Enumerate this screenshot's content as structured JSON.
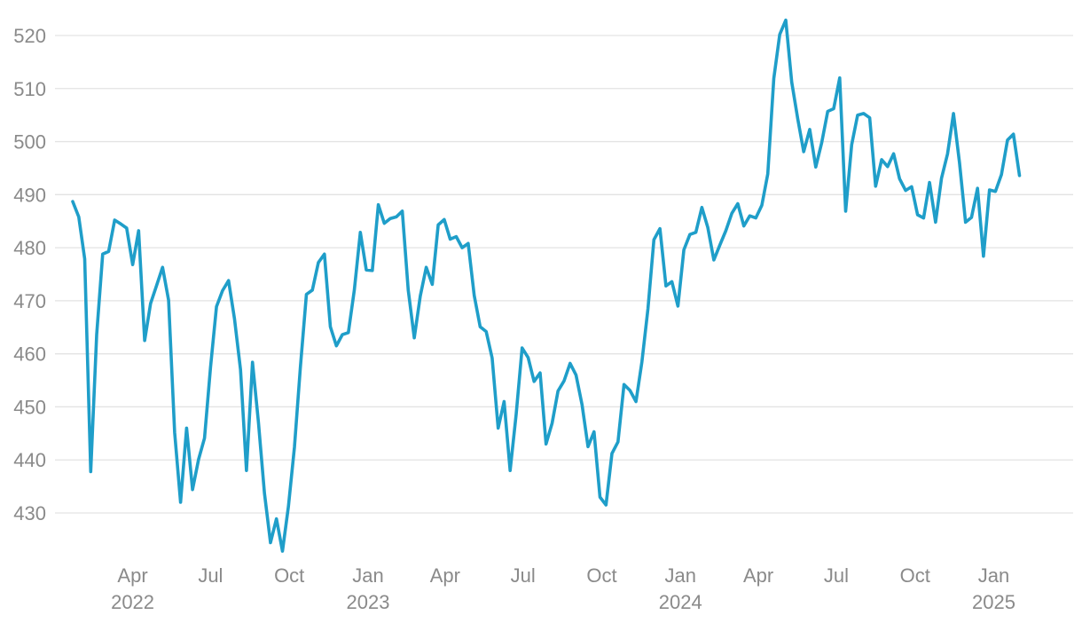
{
  "chart_data": {
    "type": "line",
    "title": "",
    "xlabel": "",
    "ylabel": "",
    "grid": true,
    "legend": "none",
    "color": "#1f9ec9",
    "ylim": [
      422,
      523
    ],
    "xlim": [
      "2022-01-21",
      "2025-03-14"
    ],
    "yticks": [
      430,
      440,
      450,
      460,
      470,
      480,
      490,
      500,
      510,
      520
    ],
    "xticks": [
      {
        "date": "2022-04-01",
        "label": "Apr",
        "sublabel": "2022"
      },
      {
        "date": "2022-07-01",
        "label": "Jul",
        "sublabel": ""
      },
      {
        "date": "2022-10-01",
        "label": "Oct",
        "sublabel": ""
      },
      {
        "date": "2023-01-01",
        "label": "Jan",
        "sublabel": "2023"
      },
      {
        "date": "2023-04-01",
        "label": "Apr",
        "sublabel": ""
      },
      {
        "date": "2023-07-01",
        "label": "Jul",
        "sublabel": ""
      },
      {
        "date": "2023-10-01",
        "label": "Oct",
        "sublabel": ""
      },
      {
        "date": "2024-01-01",
        "label": "Jan",
        "sublabel": "2024"
      },
      {
        "date": "2024-04-01",
        "label": "Apr",
        "sublabel": ""
      },
      {
        "date": "2024-07-01",
        "label": "Jul",
        "sublabel": ""
      },
      {
        "date": "2024-10-01",
        "label": "Oct",
        "sublabel": ""
      },
      {
        "date": "2025-01-01",
        "label": "Jan",
        "sublabel": "2025"
      }
    ],
    "series": [
      {
        "name": "",
        "points": [
          [
            "2022-01-21",
            488.7
          ],
          [
            "2022-01-28",
            485.8
          ],
          [
            "2022-02-04",
            477.9
          ],
          [
            "2022-02-11",
            437.8
          ],
          [
            "2022-02-18",
            463.6
          ],
          [
            "2022-02-25",
            478.8
          ],
          [
            "2022-03-04",
            479.3
          ],
          [
            "2022-03-11",
            485.2
          ],
          [
            "2022-03-18",
            484.5
          ],
          [
            "2022-03-25",
            483.7
          ],
          [
            "2022-04-01",
            476.8
          ],
          [
            "2022-04-08",
            483.2
          ],
          [
            "2022-04-15",
            462.5
          ],
          [
            "2022-04-22",
            469.5
          ],
          [
            "2022-04-29",
            472.9
          ],
          [
            "2022-05-06",
            476.3
          ],
          [
            "2022-05-13",
            470.1
          ],
          [
            "2022-05-20",
            445.2
          ],
          [
            "2022-05-27",
            432.0
          ],
          [
            "2022-06-03",
            446.0
          ],
          [
            "2022-06-10",
            434.4
          ],
          [
            "2022-06-17",
            440.1
          ],
          [
            "2022-06-24",
            444.1
          ],
          [
            "2022-07-01",
            457.5
          ],
          [
            "2022-07-08",
            468.9
          ],
          [
            "2022-07-15",
            471.9
          ],
          [
            "2022-07-22",
            473.8
          ],
          [
            "2022-07-29",
            466.6
          ],
          [
            "2022-08-05",
            457.0
          ],
          [
            "2022-08-12",
            438.0
          ],
          [
            "2022-08-19",
            458.4
          ],
          [
            "2022-08-26",
            447.1
          ],
          [
            "2022-09-02",
            433.7
          ],
          [
            "2022-09-09",
            424.4
          ],
          [
            "2022-09-16",
            428.9
          ],
          [
            "2022-09-23",
            422.8
          ],
          [
            "2022-09-30",
            431.2
          ],
          [
            "2022-10-07",
            442.4
          ],
          [
            "2022-10-14",
            457.5
          ],
          [
            "2022-10-21",
            471.2
          ],
          [
            "2022-10-28",
            472.0
          ],
          [
            "2022-11-04",
            477.2
          ],
          [
            "2022-11-11",
            478.8
          ],
          [
            "2022-11-18",
            465.1
          ],
          [
            "2022-11-25",
            461.5
          ],
          [
            "2022-12-02",
            463.6
          ],
          [
            "2022-12-09",
            464.0
          ],
          [
            "2022-12-16",
            472.0
          ],
          [
            "2022-12-23",
            482.9
          ],
          [
            "2022-12-30",
            475.8
          ],
          [
            "2023-01-06",
            475.7
          ],
          [
            "2023-01-13",
            488.1
          ],
          [
            "2023-01-20",
            484.6
          ],
          [
            "2023-01-27",
            485.5
          ],
          [
            "2023-02-03",
            485.8
          ],
          [
            "2023-02-10",
            486.9
          ],
          [
            "2023-02-17",
            472.0
          ],
          [
            "2023-02-24",
            463.0
          ],
          [
            "2023-03-03",
            470.9
          ],
          [
            "2023-03-10",
            476.3
          ],
          [
            "2023-03-17",
            473.1
          ],
          [
            "2023-03-24",
            484.3
          ],
          [
            "2023-03-31",
            485.3
          ],
          [
            "2023-04-07",
            481.6
          ],
          [
            "2023-04-14",
            482.1
          ],
          [
            "2023-04-21",
            480.0
          ],
          [
            "2023-04-28",
            480.8
          ],
          [
            "2023-05-05",
            471.0
          ],
          [
            "2023-05-12",
            465.1
          ],
          [
            "2023-05-19",
            464.2
          ],
          [
            "2023-05-26",
            459.2
          ],
          [
            "2023-06-02",
            446.0
          ],
          [
            "2023-06-09",
            451.0
          ],
          [
            "2023-06-16",
            438.0
          ],
          [
            "2023-06-23",
            448.6
          ],
          [
            "2023-06-30",
            461.1
          ],
          [
            "2023-07-07",
            459.3
          ],
          [
            "2023-07-14",
            454.8
          ],
          [
            "2023-07-21",
            456.4
          ],
          [
            "2023-07-28",
            443.0
          ],
          [
            "2023-08-04",
            446.9
          ],
          [
            "2023-08-11",
            453.0
          ],
          [
            "2023-08-18",
            454.9
          ],
          [
            "2023-08-25",
            458.2
          ],
          [
            "2023-09-01",
            456.0
          ],
          [
            "2023-09-08",
            450.4
          ],
          [
            "2023-09-15",
            442.5
          ],
          [
            "2023-09-22",
            445.3
          ],
          [
            "2023-09-29",
            433.0
          ],
          [
            "2023-10-06",
            431.5
          ],
          [
            "2023-10-13",
            441.2
          ],
          [
            "2023-10-20",
            443.4
          ],
          [
            "2023-10-27",
            454.2
          ],
          [
            "2023-11-03",
            453.1
          ],
          [
            "2023-11-10",
            451.0
          ],
          [
            "2023-11-17",
            458.5
          ],
          [
            "2023-11-24",
            468.5
          ],
          [
            "2023-12-01",
            481.5
          ],
          [
            "2023-12-08",
            483.6
          ],
          [
            "2023-12-15",
            472.8
          ],
          [
            "2023-12-22",
            473.6
          ],
          [
            "2023-12-29",
            469.0
          ],
          [
            "2024-01-05",
            479.6
          ],
          [
            "2024-01-12",
            482.5
          ],
          [
            "2024-01-19",
            482.9
          ],
          [
            "2024-01-26",
            487.6
          ],
          [
            "2024-02-02",
            483.8
          ],
          [
            "2024-02-09",
            477.7
          ],
          [
            "2024-02-16",
            480.5
          ],
          [
            "2024-02-23",
            483.2
          ],
          [
            "2024-03-01",
            486.5
          ],
          [
            "2024-03-08",
            488.3
          ],
          [
            "2024-03-15",
            484.1
          ],
          [
            "2024-03-22",
            486.0
          ],
          [
            "2024-03-29",
            485.6
          ],
          [
            "2024-04-05",
            488.0
          ],
          [
            "2024-04-12",
            493.9
          ],
          [
            "2024-04-19",
            511.9
          ],
          [
            "2024-04-26",
            520.2
          ],
          [
            "2024-05-03",
            522.9
          ],
          [
            "2024-05-10",
            511.2
          ],
          [
            "2024-05-17",
            504.3
          ],
          [
            "2024-05-24",
            498.1
          ],
          [
            "2024-05-31",
            502.3
          ],
          [
            "2024-06-07",
            495.2
          ],
          [
            "2024-06-14",
            499.8
          ],
          [
            "2024-06-21",
            505.7
          ],
          [
            "2024-06-28",
            506.2
          ],
          [
            "2024-07-05",
            512.0
          ],
          [
            "2024-07-12",
            486.9
          ],
          [
            "2024-07-19",
            499.4
          ],
          [
            "2024-07-26",
            505.0
          ],
          [
            "2024-08-02",
            505.3
          ],
          [
            "2024-08-09",
            504.5
          ],
          [
            "2024-08-16",
            491.6
          ],
          [
            "2024-08-23",
            496.6
          ],
          [
            "2024-08-30",
            495.3
          ],
          [
            "2024-09-06",
            497.7
          ],
          [
            "2024-09-13",
            493.0
          ],
          [
            "2024-09-20",
            490.8
          ],
          [
            "2024-09-27",
            491.5
          ],
          [
            "2024-10-04",
            486.2
          ],
          [
            "2024-10-11",
            485.6
          ],
          [
            "2024-10-18",
            492.3
          ],
          [
            "2024-10-25",
            484.8
          ],
          [
            "2024-11-01",
            493.1
          ],
          [
            "2024-11-08",
            497.7
          ],
          [
            "2024-11-15",
            505.3
          ],
          [
            "2024-11-22",
            496.0
          ],
          [
            "2024-11-29",
            484.8
          ],
          [
            "2024-12-06",
            485.7
          ],
          [
            "2024-12-13",
            491.2
          ],
          [
            "2024-12-20",
            478.4
          ],
          [
            "2024-12-27",
            490.9
          ],
          [
            "2025-01-03",
            490.6
          ],
          [
            "2025-01-10",
            493.8
          ],
          [
            "2025-01-17",
            500.3
          ],
          [
            "2025-01-24",
            501.4
          ],
          [
            "2025-01-31",
            493.6
          ]
        ]
      }
    ]
  }
}
